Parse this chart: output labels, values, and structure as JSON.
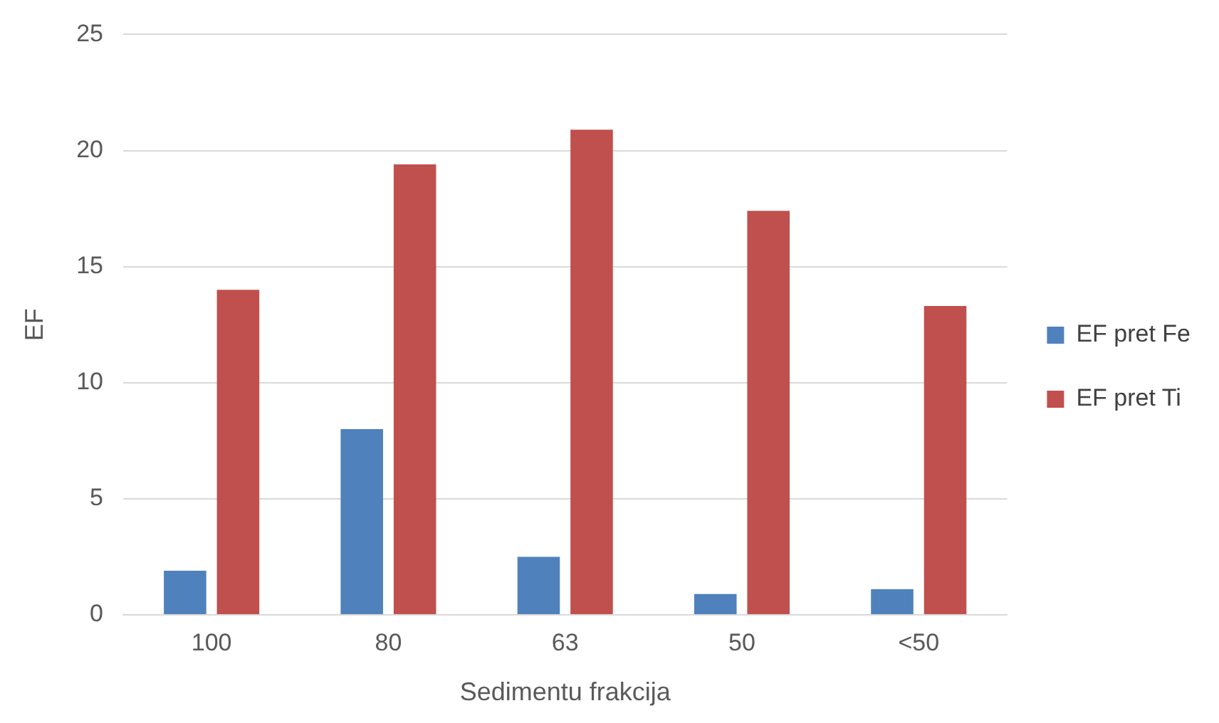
{
  "chart_data": {
    "type": "bar",
    "xlabel": "Sedimentu frakcija",
    "ylabel": "EF",
    "categories": [
      "100",
      "80",
      "63",
      "50",
      "<50"
    ],
    "series": [
      {
        "name": "EF pret Fe",
        "color": "#4f81bd",
        "values": [
          1.9,
          8,
          2.5,
          0.9,
          1.1
        ]
      },
      {
        "name": "EF pret Ti",
        "color": "#c0504d",
        "values": [
          14,
          19.4,
          20.9,
          17.4,
          13.3
        ]
      }
    ],
    "ylim": [
      0,
      25
    ],
    "yticks": [
      0,
      5,
      10,
      15,
      20,
      25
    ],
    "grid": "y",
    "legend": "right"
  }
}
